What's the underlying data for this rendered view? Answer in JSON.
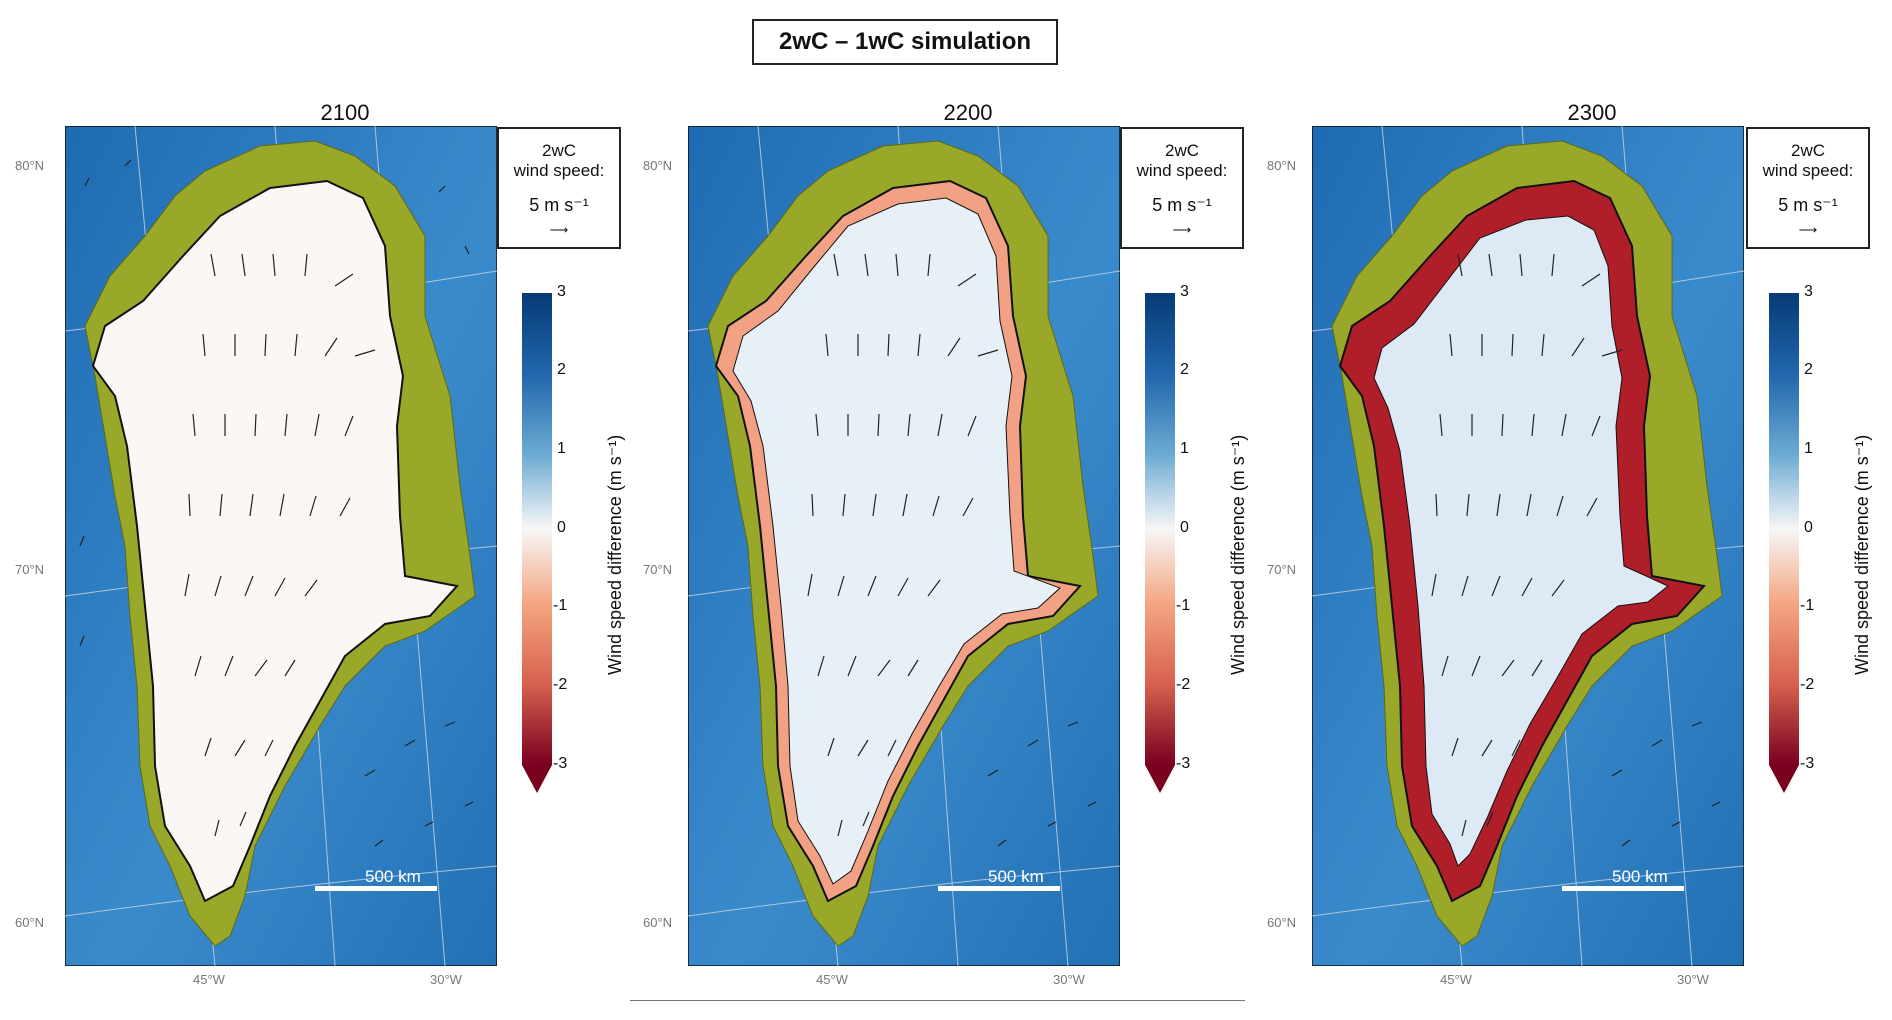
{
  "title": "2wC – 1wC simulation",
  "panels": [
    {
      "year": "2100",
      "signal": "none",
      "lat_labels": [
        "80°N",
        "70°N",
        "60°N"
      ],
      "lon_labels": [
        "45°W",
        "30°W"
      ],
      "scale_label": "500 km"
    },
    {
      "year": "2200",
      "signal": "moderate",
      "lat_labels": [
        "80°N",
        "70°N",
        "60°N"
      ],
      "lon_labels": [
        "45°W",
        "30°W"
      ],
      "scale_label": "500 km"
    },
    {
      "year": "2300",
      "signal": "strong",
      "lat_labels": [
        "80°N",
        "70°N",
        "60°N"
      ],
      "lon_labels": [
        "45°W",
        "30°W"
      ],
      "scale_label": "500 km"
    }
  ],
  "legend": {
    "line1": "2wC",
    "line2": "wind speed:",
    "speed": "5 m s⁻¹",
    "arrow": "⟶"
  },
  "colorbar": {
    "label": "Wind speed difference (m s⁻¹)",
    "ticks": [
      "3",
      "2",
      "1",
      "0",
      "-1",
      "-2",
      "-3"
    ],
    "range": [
      -3,
      3
    ],
    "colors": {
      "negative": "#7a0020",
      "zero": "#f7f7f7",
      "positive": "#063a75"
    }
  },
  "map_colors": {
    "ocean": "#2f7dc0",
    "land": "#9aa82a",
    "ice": "#fbf7f5",
    "difference_negative": "#c81f2c"
  }
}
